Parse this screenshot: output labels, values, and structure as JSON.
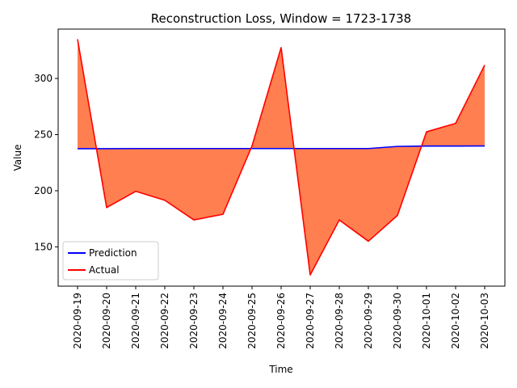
{
  "chart_data": {
    "type": "line",
    "title": "Reconstruction Loss, Window = 1723-1738",
    "xlabel": "Time",
    "ylabel": "Value",
    "categories": [
      "2020-09-19",
      "2020-09-20",
      "2020-09-21",
      "2020-09-22",
      "2020-09-23",
      "2020-09-24",
      "2020-09-25",
      "2020-09-26",
      "2020-09-27",
      "2020-09-28",
      "2020-09-29",
      "2020-09-30",
      "2020-10-01",
      "2020-10-02",
      "2020-10-03"
    ],
    "series": [
      {
        "name": "Prediction",
        "color": "#0000ff",
        "values": [
          237.5,
          237.5,
          237.6,
          237.6,
          237.6,
          237.6,
          237.6,
          237.6,
          237.6,
          237.6,
          237.6,
          239.5,
          239.8,
          239.8,
          239.9
        ]
      },
      {
        "name": "Actual",
        "color": "#ff0000",
        "values": [
          335,
          185,
          199.5,
          191.5,
          174,
          179,
          240,
          327.5,
          125,
          174,
          155,
          178,
          252.5,
          260,
          312
        ]
      }
    ],
    "fill_color": "#ff7f50",
    "ylim": [
      115,
      344
    ],
    "yticks": [
      150,
      200,
      250,
      300
    ],
    "legend_position": "lower-left",
    "grid": false
  }
}
